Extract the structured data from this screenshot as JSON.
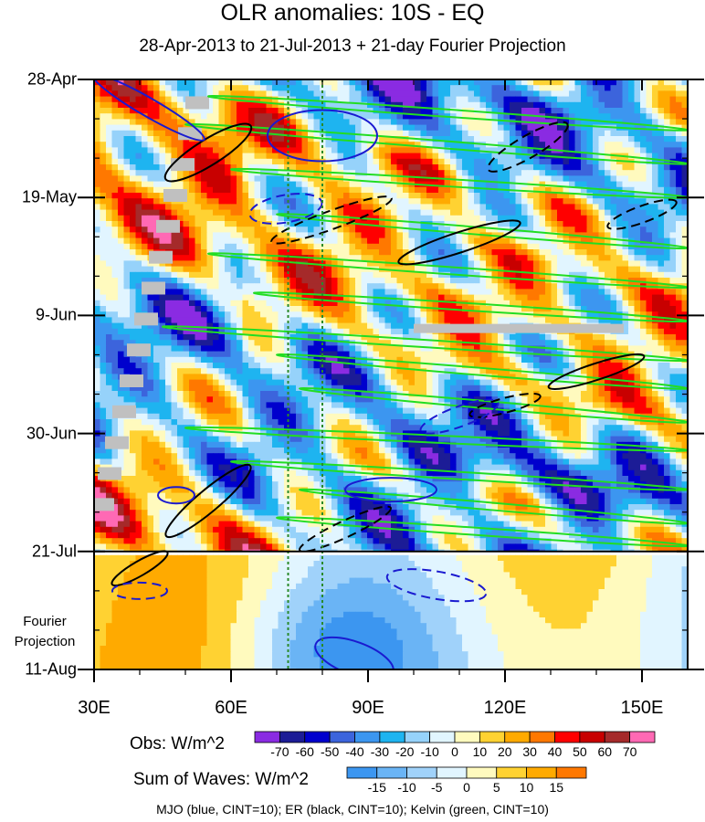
{
  "chart_data": {
    "type": "heatmap",
    "title": "OLR anomalies: 10S - EQ",
    "subtitle": "28-Apr-2013 to 21-Jul-2013 + 21-day Fourier Projection",
    "x_tick_labels": [
      "30E",
      "60E",
      "90E",
      "120E",
      "150E"
    ],
    "x_ticks": [
      30,
      60,
      90,
      120,
      150
    ],
    "xlim": [
      30,
      160
    ],
    "y_tick_labels": [
      "28-Apr",
      "19-May",
      "9-Jun",
      "30-Jun",
      "21-Jul",
      "11-Aug"
    ],
    "y_ticks_days": [
      0,
      21,
      42,
      63,
      84,
      105
    ],
    "ylim_days": [
      0,
      105
    ],
    "observation_end_day": 84,
    "projection_label": "Fourier Projection",
    "reference_longitudes": [
      72.5,
      80
    ],
    "obs_colorbar": {
      "title": "Obs: W/m^2",
      "levels": [
        -70,
        -60,
        -50,
        -40,
        -30,
        -20,
        -10,
        0,
        10,
        20,
        30,
        40,
        50,
        60,
        70
      ],
      "colors": [
        "#8a2be2",
        "#1c1c96",
        "#0000cd",
        "#3c64dc",
        "#3c96f0",
        "#1eb4f0",
        "#96d2fa",
        "#e1f5ff",
        "#fffabe",
        "#ffd232",
        "#ffaa00",
        "#ff7800",
        "#ff0000",
        "#c80000",
        "#a52a2a",
        "#ff69b4"
      ]
    },
    "waves_colorbar": {
      "title": "Sum of Waves: W/m^2",
      "levels": [
        -15,
        -10,
        -5,
        0,
        5,
        10,
        15
      ],
      "colors": [
        "#3c96f0",
        "#6ab4f5",
        "#a0d2fa",
        "#e1f5ff",
        "#fffabe",
        "#ffd232",
        "#ffaa00",
        "#ff7800"
      ]
    },
    "contour_legend": "MJO (blue, CINT=10); ER (black, CINT=10); Kelvin (green, CINT=10)",
    "series": [
      {
        "name": "MJO",
        "color": "#1a1ad0"
      },
      {
        "name": "ER",
        "color": "#000000"
      },
      {
        "name": "Kelvin",
        "color": "#22dd22"
      }
    ]
  }
}
